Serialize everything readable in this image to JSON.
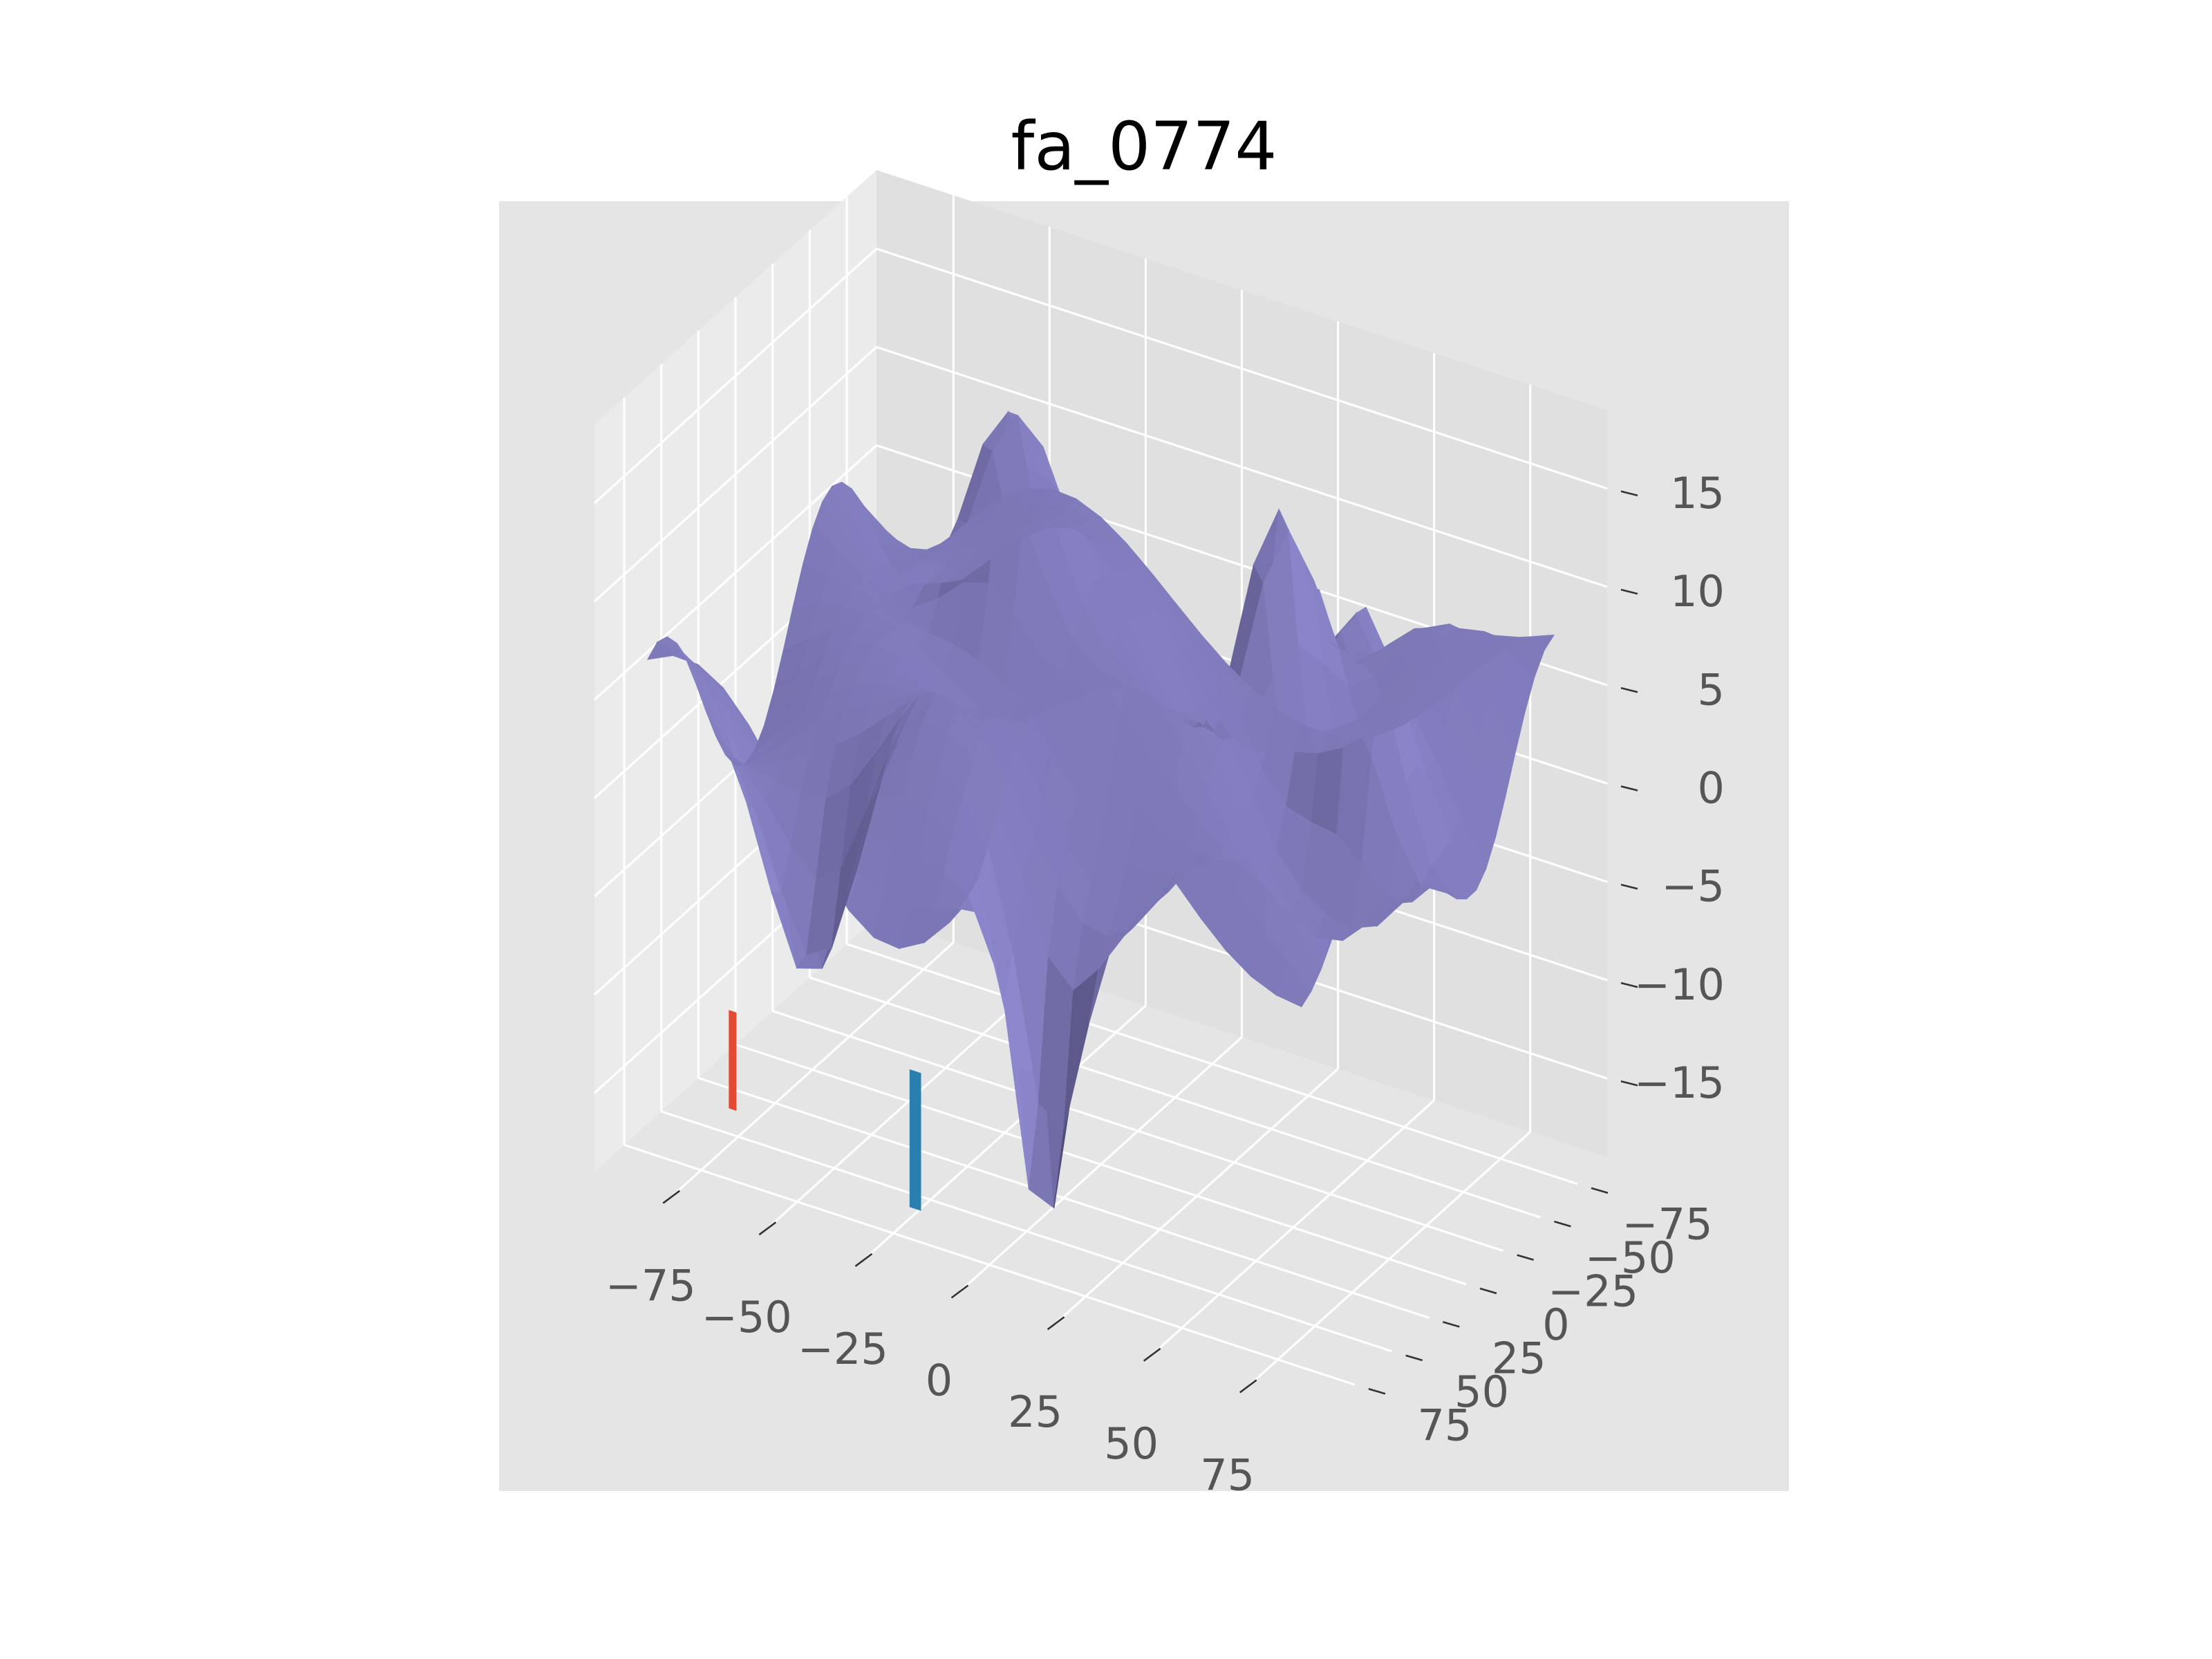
{
  "chart_data": {
    "type": "surface3d",
    "title": "fa_0774",
    "xlabel": "",
    "ylabel": "",
    "zlabel": "",
    "x_ticks": [
      -75,
      -50,
      -25,
      0,
      25,
      50,
      75
    ],
    "y_ticks": [
      -75,
      -50,
      -25,
      0,
      25,
      50,
      75
    ],
    "z_ticks": [
      -15,
      -10,
      -5,
      0,
      5,
      10,
      15
    ],
    "x_tick_labels": [
      "−75",
      "−50",
      "−25",
      "0",
      "25",
      "50",
      "75"
    ],
    "y_tick_labels": [
      "−75",
      "−50",
      "−25",
      "0",
      "25",
      "50",
      "75"
    ],
    "z_tick_labels": [
      "−15",
      "−10",
      "−5",
      "0",
      "5",
      "10",
      "15"
    ],
    "xlim": [
      -95,
      95
    ],
    "ylim": [
      -95,
      95
    ],
    "zlim": [
      -19,
      19
    ],
    "grid": true,
    "style": "ggplot",
    "colors": {
      "background": "#e5e5e5",
      "pane_floor": "#e5e5e5",
      "pane_left": "#ebebeb",
      "pane_right": "#e0e0e0",
      "grid": "#ffffff",
      "surface_light": "#8e89cf",
      "surface_mid": "#7b76b4",
      "surface_dark": "#4a4670",
      "accent_blue": "#2a7fb0",
      "accent_red": "#e24a33"
    }
  }
}
